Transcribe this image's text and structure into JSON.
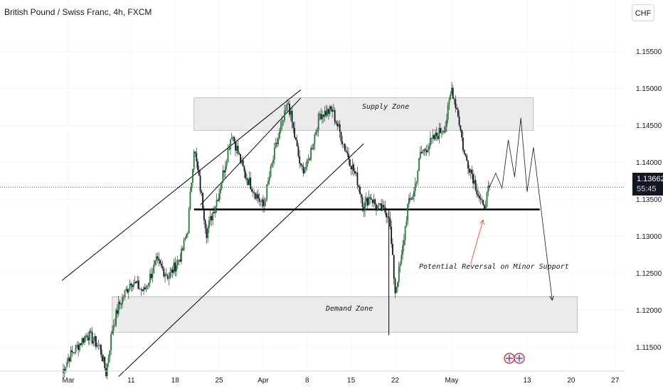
{
  "header": {
    "title": "British Pound / Swiss Franc, 4h, FXCM",
    "currency_button": "CHF"
  },
  "price_tag": {
    "price": "1.13662",
    "countdown": "55:45"
  },
  "annotations": {
    "supply_zone": "Supply Zone",
    "demand_zone": "Demand Zone",
    "reversal_note": "Potential Reversal on Minor Support"
  },
  "colors": {
    "candle_up": "#1e7d32",
    "candle_down": "#131722",
    "zone_fill": "#ebebeb",
    "zone_border": "#9e9e9e",
    "arrow_red": "#e53935",
    "support_line": "#000000",
    "price_line": "#131722"
  },
  "chart_data": {
    "type": "candlestick",
    "symbol": "British Pound / Swiss Franc",
    "timeframe": "4h",
    "source": "FXCM",
    "y_ticks": [
      "1.15500",
      "1.15000",
      "1.14500",
      "1.14000",
      "1.13500",
      "1.13000",
      "1.12500",
      "1.12000",
      "1.11500"
    ],
    "x_ticks": [
      "Mar",
      "11",
      "18",
      "25",
      "Apr",
      "8",
      "15",
      "22",
      "May",
      "13",
      "20",
      "27"
    ],
    "ylim": [
      1.11,
      1.1605
    ],
    "last_price": 1.13662,
    "price_path": [
      {
        "date": "Feb 29",
        "price": 1.1115
      },
      {
        "date": "Mar 1",
        "price": 1.1135
      },
      {
        "date": "Mar 4",
        "price": 1.1168
      },
      {
        "date": "Mar 6",
        "price": 1.115
      },
      {
        "date": "Mar 7",
        "price": 1.1115
      },
      {
        "date": "Mar 8",
        "price": 1.1175
      },
      {
        "date": "Mar 9",
        "price": 1.1205
      },
      {
        "date": "Mar 11",
        "price": 1.124
      },
      {
        "date": "Mar 13",
        "price": 1.1225
      },
      {
        "date": "Mar 15",
        "price": 1.1265
      },
      {
        "date": "Mar 17",
        "price": 1.1245
      },
      {
        "date": "Mar 19",
        "price": 1.1275
      },
      {
        "date": "Mar 20",
        "price": 1.131
      },
      {
        "date": "Mar 21",
        "price": 1.142
      },
      {
        "date": "Mar 22",
        "price": 1.1365
      },
      {
        "date": "Mar 23",
        "price": 1.1305
      },
      {
        "date": "Mar 25",
        "price": 1.136
      },
      {
        "date": "Mar 27",
        "price": 1.144
      },
      {
        "date": "Mar 29",
        "price": 1.1385
      },
      {
        "date": "Apr 1",
        "price": 1.134
      },
      {
        "date": "Apr 3",
        "price": 1.142
      },
      {
        "date": "Apr 5",
        "price": 1.148
      },
      {
        "date": "Apr 7",
        "price": 1.139
      },
      {
        "date": "Apr 8",
        "price": 1.1395
      },
      {
        "date": "Apr 10",
        "price": 1.1465
      },
      {
        "date": "Apr 12",
        "price": 1.147
      },
      {
        "date": "Apr 14",
        "price": 1.142
      },
      {
        "date": "Apr 16",
        "price": 1.1375
      },
      {
        "date": "Apr 17",
        "price": 1.134
      },
      {
        "date": "Apr 18",
        "price": 1.1355
      },
      {
        "date": "Apr 19",
        "price": 1.134
      },
      {
        "date": "Apr 21",
        "price": 1.133
      },
      {
        "date": "Apr 22",
        "price": 1.1225
      },
      {
        "date": "Apr 23",
        "price": 1.127
      },
      {
        "date": "Apr 24",
        "price": 1.134
      },
      {
        "date": "Apr 25",
        "price": 1.136
      },
      {
        "date": "Apr 26",
        "price": 1.141
      },
      {
        "date": "Apr 28",
        "price": 1.143
      },
      {
        "date": "Apr 30",
        "price": 1.145
      },
      {
        "date": "May 1",
        "price": 1.15
      },
      {
        "date": "May 2",
        "price": 1.1465
      },
      {
        "date": "May 3",
        "price": 1.141
      },
      {
        "date": "May 4",
        "price": 1.139
      },
      {
        "date": "May 6",
        "price": 1.1336
      },
      {
        "date": "May 7",
        "price": 1.1366
      }
    ],
    "projection_path": [
      {
        "date": "May 7",
        "price": 1.1366
      },
      {
        "date": "May 8",
        "price": 1.1385
      },
      {
        "date": "May 9",
        "price": 1.1365
      },
      {
        "date": "May 10",
        "price": 1.143
      },
      {
        "date": "May 11",
        "price": 1.138
      },
      {
        "date": "May 12",
        "price": 1.146
      },
      {
        "date": "May 13",
        "price": 1.136
      },
      {
        "date": "May 14",
        "price": 1.142
      },
      {
        "date": "May 17",
        "price": 1.1213
      }
    ],
    "supply_zone": {
      "from": "Mar 21",
      "to": "May 14",
      "low": 1.1443,
      "high": 1.1487
    },
    "demand_zone": {
      "from": "Mar 8",
      "to": "May 21",
      "low": 1.117,
      "high": 1.1218
    },
    "support_line": {
      "from": "Mar 21",
      "to": "May 15",
      "price": 1.1336
    },
    "upper_channel_line": {
      "from": {
        "date": "Feb 29",
        "price": 1.124
      },
      "to": {
        "date": "Apr 7",
        "price": 1.1498
      }
    },
    "lower_channel_line": {
      "from": {
        "date": "Mar 9",
        "price": 1.111
      },
      "to": {
        "date": "Apr 17",
        "price": 1.1425
      }
    },
    "rally_line": {
      "from": {
        "date": "Mar 22",
        "price": 1.1342
      },
      "to": {
        "date": "Apr 7",
        "price": 1.1487
      }
    },
    "vertical_marker": {
      "date": "Apr 21",
      "from": 1.1336,
      "to": 1.1166
    },
    "annotation_arrow": {
      "from": {
        "date": "May 4",
        "price": 1.1262
      },
      "to": {
        "date": "May 6",
        "price": 1.1322
      }
    }
  }
}
